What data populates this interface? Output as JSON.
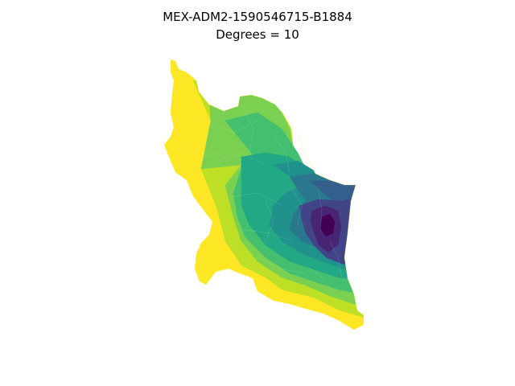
{
  "figure": {
    "title_line1": "MEX-ADM2-1590546715-B1884",
    "title_line2": "Degrees = 10"
  },
  "map": {
    "colormap": "viridis",
    "colors": {
      "yellow": "#fde725",
      "yellow_green": "#bddf26",
      "light_green": "#7ad151",
      "green": "#44bf70",
      "teal_green": "#22a884",
      "teal": "#21918c",
      "blue_teal": "#2a788e",
      "blue": "#355f8d",
      "indigo": "#414487",
      "purple": "#482475",
      "dark_purple": "#440154"
    }
  }
}
